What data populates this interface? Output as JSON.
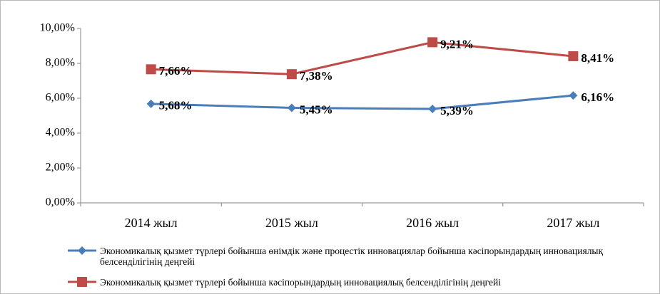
{
  "chart_data": {
    "type": "line",
    "categories": [
      "2014 жыл",
      "2015 жыл",
      "2016 жыл",
      "2017 жыл"
    ],
    "series": [
      {
        "name": "Экономикалық қызмет түрлері бойынша өнімдік және процестік инновациялар бойынша  кәсіпорындардың инновациялық белсенділігінің деңгейі",
        "color": "#4a7ebb",
        "marker": "diamond",
        "values": [
          5.68,
          5.45,
          5.39,
          6.16
        ],
        "value_labels": [
          "5,68%",
          "5,45%",
          "5,39%",
          "6,16%"
        ]
      },
      {
        "name": "Экономикалық қызмет түрлері бойынша кәсіпорындардың инновациялық белсенділігінің  деңгейі",
        "color": "#be4b48",
        "marker": "square",
        "values": [
          7.66,
          7.38,
          9.21,
          8.41
        ],
        "value_labels": [
          "7,66%",
          "7,38%",
          "9,21%",
          "8,41%"
        ]
      }
    ],
    "ylim": [
      0,
      10
    ],
    "yticks": [
      {
        "value": 0,
        "label": "0,00%"
      },
      {
        "value": 2,
        "label": "2,00%"
      },
      {
        "value": 4,
        "label": "4,00%"
      },
      {
        "value": 6,
        "label": "6,00%"
      },
      {
        "value": 8,
        "label": "8,00%"
      },
      {
        "value": 10,
        "label": "10,00%"
      }
    ],
    "legend": "bottom"
  }
}
